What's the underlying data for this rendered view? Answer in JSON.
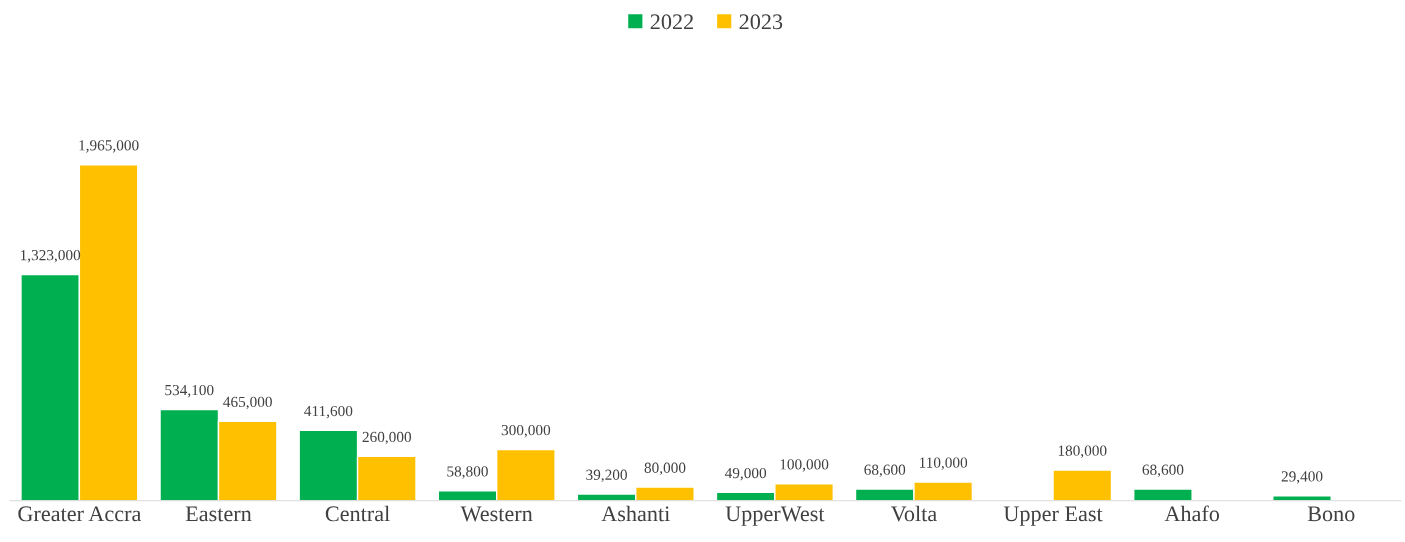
{
  "chart_data": {
    "type": "bar",
    "categories": [
      "Greater Accra",
      "Eastern",
      "Central",
      "Western",
      "Ashanti",
      "UpperWest",
      "Volta",
      "Upper East",
      "Ahafo",
      "Bono"
    ],
    "series": [
      {
        "name": "2022",
        "color": "#00b050",
        "values": [
          1323000,
          534100,
          411600,
          58800,
          39200,
          49000,
          68600,
          null,
          68600,
          29400
        ],
        "value_labels": [
          "1,323,000",
          "534,100",
          "411,600",
          "58,800",
          "39,200",
          "49,000",
          "68,600",
          null,
          "68,600",
          "29,400"
        ]
      },
      {
        "name": "2023",
        "color": "#ffc000",
        "values": [
          1965000,
          465000,
          260000,
          300000,
          80000,
          100000,
          110000,
          180000,
          null,
          null
        ],
        "value_labels": [
          "1,965,000",
          "465,000",
          "260,000",
          "300,000",
          "80,000",
          "100,000",
          "110,000",
          "180,000",
          null,
          null
        ]
      }
    ],
    "legend": "top",
    "grid": false,
    "tick_labels": "x"
  }
}
